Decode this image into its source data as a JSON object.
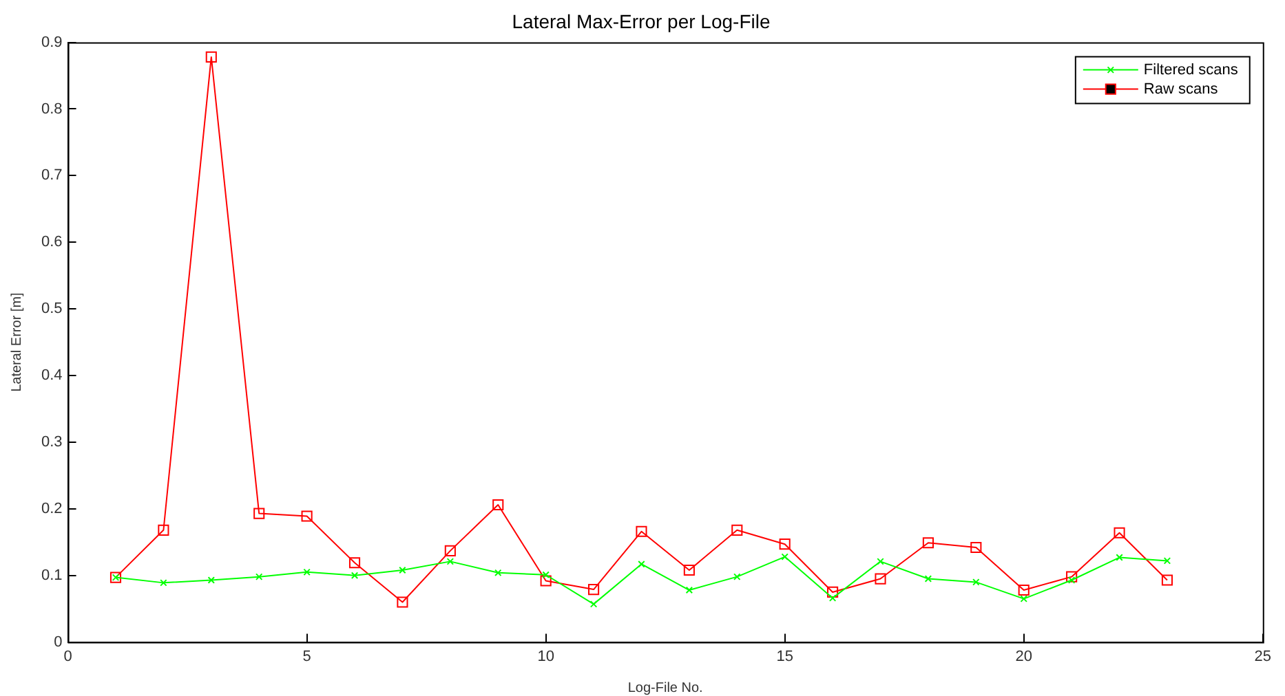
{
  "chart_data": {
    "type": "line",
    "title": "Lateral Max-Error per Log-File",
    "xlabel": "Log-File No.",
    "ylabel": "Lateral Error [m]",
    "x": [
      1,
      2,
      3,
      4,
      5,
      6,
      7,
      8,
      9,
      10,
      11,
      12,
      13,
      14,
      15,
      16,
      17,
      18,
      19,
      20,
      21,
      22,
      23
    ],
    "series": [
      {
        "name": "Filtered scans",
        "color": "#00ff00",
        "marker": "cross",
        "values": [
          0.097,
          0.089,
          0.093,
          0.098,
          0.105,
          0.1,
          0.108,
          0.121,
          0.104,
          0.101,
          0.057,
          0.117,
          0.078,
          0.098,
          0.128,
          0.066,
          0.121,
          0.095,
          0.09,
          0.065,
          0.093,
          0.127,
          0.122
        ]
      },
      {
        "name": "Raw scans",
        "color": "#ff0000",
        "marker": "square",
        "values": [
          0.097,
          0.168,
          0.878,
          0.193,
          0.189,
          0.119,
          0.06,
          0.137,
          0.206,
          0.092,
          0.079,
          0.166,
          0.108,
          0.168,
          0.147,
          0.075,
          0.095,
          0.149,
          0.142,
          0.078,
          0.098,
          0.164,
          0.093
        ]
      }
    ],
    "xlim": [
      0,
      25
    ],
    "xticks": [
      0,
      5,
      10,
      15,
      20,
      25
    ],
    "ylim": [
      0,
      0.9
    ],
    "yticks": [
      0,
      0.1,
      0.2,
      0.3,
      0.4,
      0.5,
      0.6,
      0.7,
      0.8,
      0.9
    ],
    "grid": false,
    "legend": "top right",
    "line_style": "solid"
  }
}
